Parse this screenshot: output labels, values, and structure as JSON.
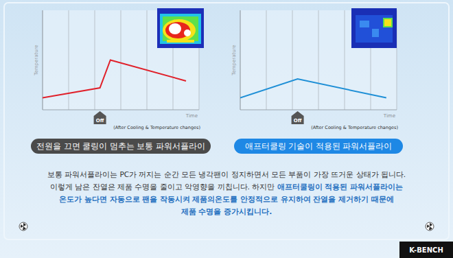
{
  "chart_data": [
    {
      "type": "line",
      "title": "전원을 끄면 쿨링이 멈추는 보통 파워서플라이",
      "x_label": "Time",
      "y_label": "Temperature",
      "note": "(After Cooling & Temperature changes)",
      "x": [
        0,
        2.2,
        2.6,
        5.5
      ],
      "values": [
        12,
        22,
        50,
        29
      ],
      "color": "#e0202a",
      "xlim": [
        0,
        6
      ],
      "ylim": [
        0,
        100
      ],
      "xticks": [
        0,
        1,
        2,
        3,
        4,
        5,
        6
      ],
      "grid": true,
      "tick_labels": false,
      "annotations": [
        {
          "text": "Off",
          "x": 2.2
        }
      ]
    },
    {
      "type": "line",
      "title": "애프터쿨링 기술이 적용된 파워서플라이",
      "x_label": "Time",
      "y_label": "Temperature",
      "note": "(After Cooling & Temperature changes)",
      "x": [
        0,
        2.2,
        5.6
      ],
      "values": [
        12,
        31,
        12
      ],
      "color": "#1e8fd6",
      "xlim": [
        0,
        6
      ],
      "ylim": [
        0,
        100
      ],
      "xticks": [
        0,
        1,
        2,
        3,
        4,
        5,
        6
      ],
      "grid": true,
      "tick_labels": false,
      "annotations": [
        {
          "text": "Off",
          "x": 2.2
        }
      ]
    }
  ],
  "description": {
    "lines": [
      [
        {
          "text": "보통 파워서플라이는 PC가 꺼지는 순간 모든 냉각팬이 정지하면서 모든 부품이 가장 뜨거운 상태가 됩니다.",
          "color": "#333333"
        }
      ],
      [
        {
          "text": "이렇게 남은 잔열은 제품 수명을 줄이고 악영향을 끼칩니다. 하지만 ",
          "color": "#333333"
        },
        {
          "text": "애프터쿨링이 적용된 파워서플라이는",
          "color": "#1f6fc0"
        }
      ],
      [
        {
          "text": "온도가 높다면 자동으로 팬을 작동시켜 제품의온도를 안정적으로 유지하여 잔열을 제거하기 때문에",
          "color": "#1f6fc0"
        }
      ],
      [
        {
          "text": "제품 수명을 증가시킵니다.",
          "color": "#1f6fc0"
        }
      ]
    ]
  },
  "logo": "K-BENCH"
}
